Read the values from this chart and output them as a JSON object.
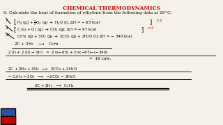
{
  "title": "CHEMICAL THERMODYNAMICS",
  "title_color": "#cc0000",
  "bg_color": "#f5f0e8",
  "question": "6. Calculate the heat of formation of ethylene from the following data at 20°C:",
  "eq1": "H$_2$ (g) + $\\frac{1}{2}$O$_2$ (g) $\\rightarrow$ H$_2$O (l); $\\Delta$H = $-$ 65 kcal",
  "eq2": "C (s) + O$_2$ (g) $\\rightarrow$ CO$_2$ (g); $\\Delta$H = $-$ 97 kcal",
  "eq3": "C$_2$H$_4$ (g) + 3O$_2$ (g) $\\rightarrow$ 2CO$_2$ (g) + 2H$_2$O (l); $\\Delta$H = $-$ 340 kcal",
  "derived": "2C + 2H$_2$   $\\longrightarrow$   C$_2$H$_4$",
  "calc": "2 (I) + 2 (II) $-$ (III)   =  2$\\times$($-$65) + 2$\\times$($-$97)$-$($-$340)",
  "result": "=  16 cals.",
  "step1": "2C + 2H$_2$ + 3O$_2$  $\\longrightarrow$  2CO$_2$ + 2H$_2$O",
  "step2": "$-$ C$_2$H$_4$ $-$ 3O$_2$  $\\longrightarrow$  $-$2CO$_2$ $-$ 2H$_2$O",
  "step3": "2C + 2H$_2$  $\\longrightarrow$  C$_2$H$_4$",
  "red": "#cc0000",
  "blue": "#2255aa"
}
